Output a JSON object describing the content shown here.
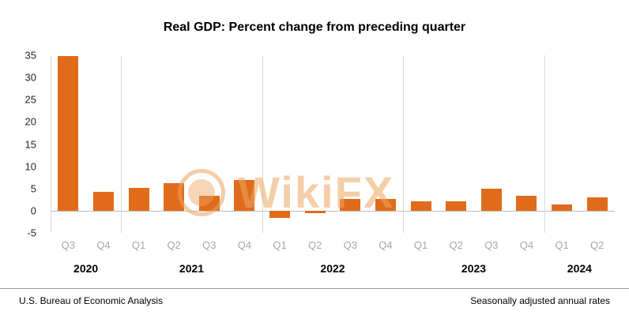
{
  "watermark": {
    "text": "WikiFX"
  },
  "footer": {
    "left": "U.S. Bureau of Economic Analysis",
    "right": "Seasonally adjusted annual rates"
  },
  "chart_data": {
    "type": "bar",
    "title": "Real GDP: Percent change from preceding quarter",
    "xlabel": "",
    "ylabel": "",
    "ylim": [
      -5,
      35
    ],
    "yticks": [
      35,
      30,
      25,
      20,
      15,
      10,
      5,
      0,
      -5
    ],
    "grid": "vertical-year-separators",
    "legend": "none",
    "bar_color": "#E06C1B",
    "quarter_label_color": "#a6a6a6",
    "categories": [
      "Q3",
      "Q4",
      "Q1",
      "Q2",
      "Q3",
      "Q4",
      "Q1",
      "Q2",
      "Q3",
      "Q4",
      "Q1",
      "Q2",
      "Q3",
      "Q4",
      "Q1",
      "Q2"
    ],
    "values": [
      34.8,
      4.2,
      5.2,
      6.2,
      3.3,
      7.0,
      -1.6,
      -0.6,
      2.7,
      2.6,
      2.2,
      2.1,
      4.9,
      3.4,
      1.4,
      3.0
    ],
    "year_groups": [
      {
        "year": "2020",
        "count": 2
      },
      {
        "year": "2021",
        "count": 4
      },
      {
        "year": "2022",
        "count": 4
      },
      {
        "year": "2023",
        "count": 4
      },
      {
        "year": "2024",
        "count": 2
      }
    ]
  }
}
